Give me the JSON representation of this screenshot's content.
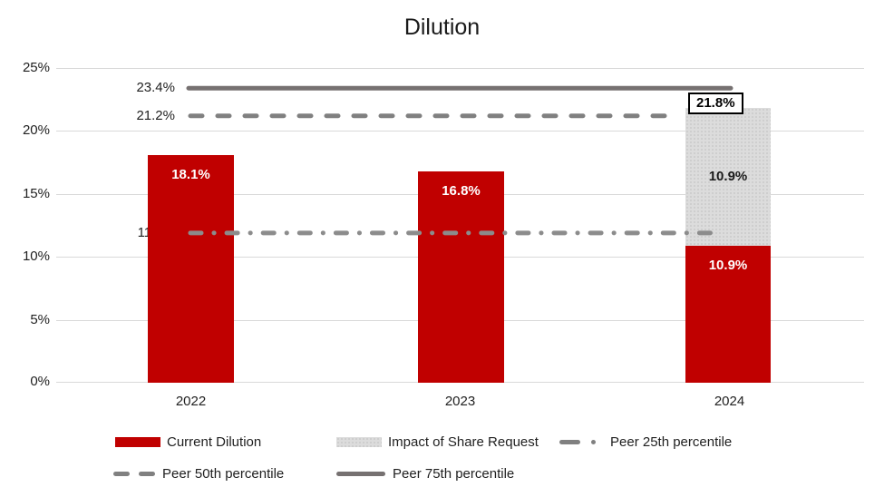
{
  "chart": {
    "title": "Dilution"
  },
  "chart_data": {
    "type": "bar",
    "subtype": "stacked-column-with-lines",
    "title": "Dilution",
    "categories": [
      "2022",
      "2023",
      "2024"
    ],
    "series": [
      {
        "name": "Current Dilution",
        "kind": "column",
        "color": "#C00000",
        "values": [
          18.1,
          16.8,
          10.9
        ],
        "labels": [
          "18.1%",
          "16.8%",
          "10.9%"
        ]
      },
      {
        "name": "Impact of Share Request",
        "kind": "column",
        "color": "#D9D9D9",
        "values": [
          0,
          0,
          10.9
        ],
        "labels": [
          "",
          "",
          "10.9%"
        ]
      },
      {
        "name": "Peer 25th percentile",
        "kind": "line",
        "dash": "dash-dot",
        "color": "#8C8C8C",
        "value": 11.9,
        "label": "11.9%"
      },
      {
        "name": "Peer 50th percentile",
        "kind": "line",
        "dash": "dashed",
        "color": "#808080",
        "value": 21.2,
        "label": "21.2%"
      },
      {
        "name": "Peer 75th percentile",
        "kind": "line",
        "dash": "solid",
        "color": "#767171",
        "value": 23.4,
        "label": "23.4%"
      }
    ],
    "stack_totals": {
      "values": [
        18.1,
        16.8,
        21.8
      ],
      "labels": [
        "",
        "",
        "21.8%"
      ]
    },
    "ylim": [
      0,
      25
    ],
    "yticks": [
      "25%",
      "20%",
      "15%",
      "10%",
      "5%",
      "0%"
    ],
    "grid": true,
    "legend_position": "bottom"
  },
  "legend": {
    "items": [
      {
        "label": "Current Dilution",
        "swatch": "red-rectangle"
      },
      {
        "label": "Impact of Share Request",
        "swatch": "gray-pattern-rectangle"
      },
      {
        "label": "Peer 25th percentile",
        "swatch": "dash-dot-line"
      },
      {
        "label": "Peer 50th percentile",
        "swatch": "dashed-line"
      },
      {
        "label": "Peer 75th percentile",
        "swatch": "solid-line"
      }
    ]
  },
  "colors": {
    "bar_red": "#C00000",
    "bar_gray": "#D9D9D9",
    "gridline": "#D9D9D9",
    "peer25_line": "#8C8C8C",
    "peer50_line": "#808080",
    "peer75_line": "#767171",
    "text": "#1F1F1F"
  }
}
